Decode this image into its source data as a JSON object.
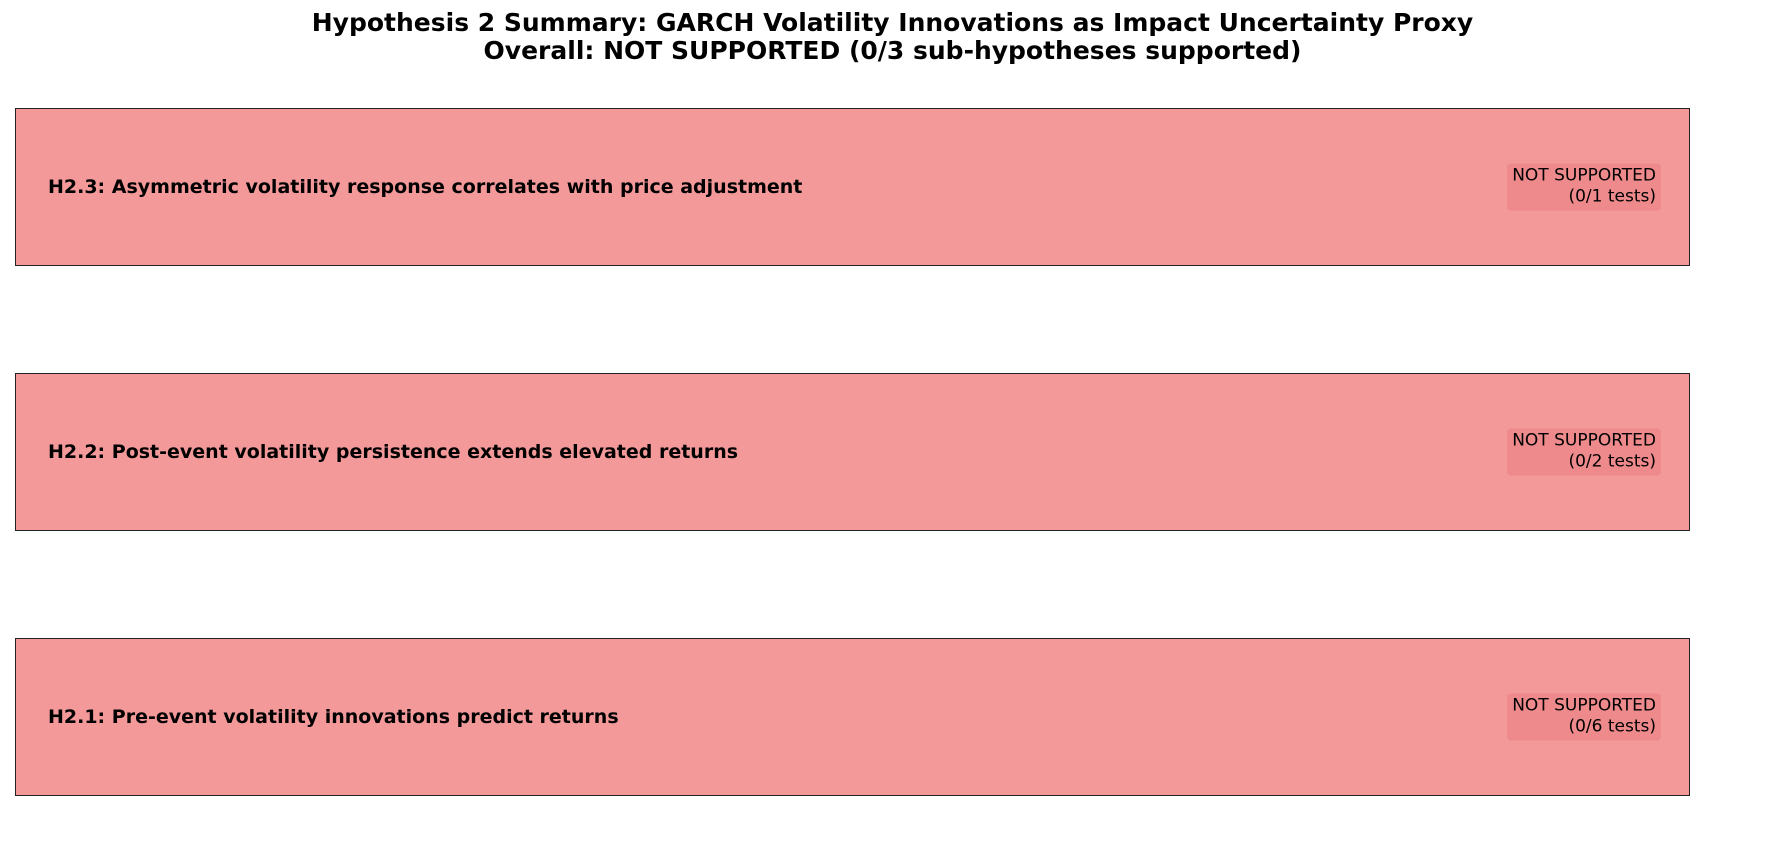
{
  "chart_data": {
    "type": "table",
    "title": "Hypothesis 2 Summary: GARCH Volatility Innovations as Impact Uncertainty Proxy",
    "subtitle": "Overall: NOT SUPPORTED (0/3 sub-hypotheses supported)",
    "rows": [
      {
        "label": "H2.3: Asymmetric volatility response correlates with price adjustment",
        "status": "NOT SUPPORTED",
        "tests": "(0/1 tests)",
        "supported": 0,
        "total": 1
      },
      {
        "label": "H2.2: Post-event volatility persistence extends elevated returns",
        "status": "NOT SUPPORTED",
        "tests": "(0/2 tests)",
        "supported": 0,
        "total": 2
      },
      {
        "label": "H2.1: Pre-event volatility innovations predict returns",
        "status": "NOT SUPPORTED",
        "tests": "(0/6 tests)",
        "supported": 0,
        "total": 6
      }
    ],
    "colors": {
      "not_supported_fill": "#f3999a",
      "status_box_fill": "#ee8a8b",
      "border": "#222222"
    }
  }
}
